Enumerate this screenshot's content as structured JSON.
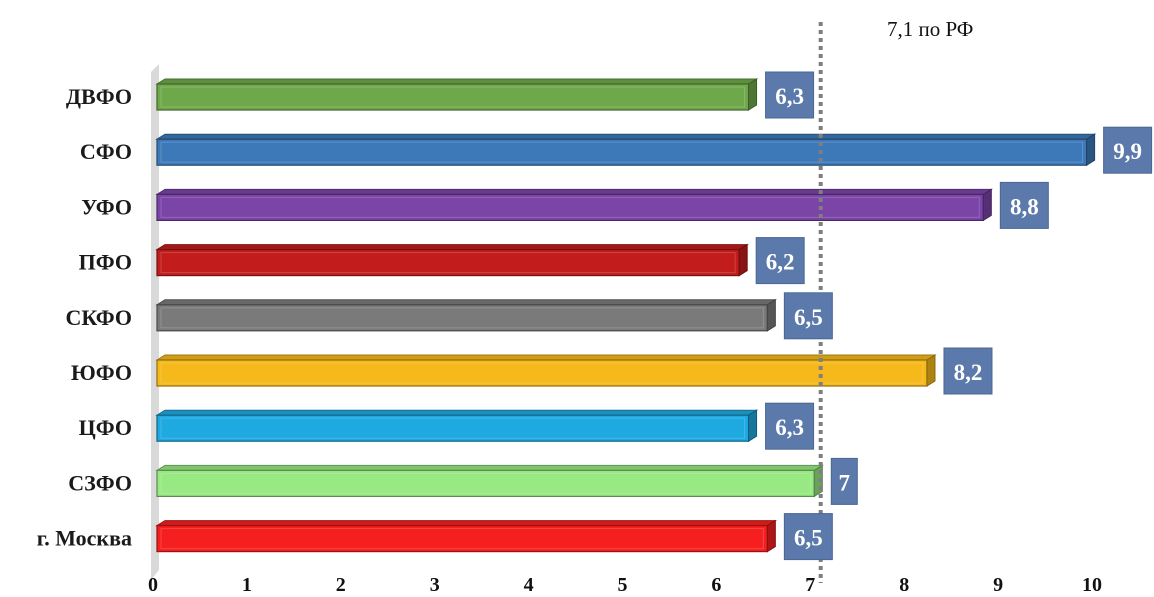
{
  "chart_data": {
    "type": "bar",
    "orientation": "horizontal",
    "categories": [
      "ДВФО",
      "СФО",
      "УФО",
      "ПФО",
      "СКФО",
      "ЮФО",
      "ЦФО",
      "СЗФО",
      "г. Москва"
    ],
    "values": [
      6.3,
      9.9,
      8.8,
      6.2,
      6.5,
      8.2,
      6.3,
      7,
      6.5
    ],
    "data_labels": [
      "6,3",
      "9,9",
      "8,8",
      "6,2",
      "6,5",
      "8,2",
      "6,3",
      "7",
      "6,5"
    ],
    "bar_colors": [
      "#6fa84a",
      "#3d79b8",
      "#7b45a8",
      "#c21c1c",
      "#7a7a7a",
      "#f5b91b",
      "#1ea9e1",
      "#98e883",
      "#f61f1f"
    ],
    "label_box_color": "#5b79aa",
    "x_ticks": [
      "0",
      "1",
      "2",
      "3",
      "4",
      "5",
      "6",
      "7",
      "8",
      "9",
      "10"
    ],
    "xlim": [
      0,
      10
    ],
    "reference_line": {
      "value": 7.1,
      "label": "7,1 по РФ",
      "style": "dotted",
      "color": "#7f7f7f"
    },
    "title": "",
    "xlabel": "",
    "ylabel": "",
    "legend": "none",
    "grid": false
  }
}
